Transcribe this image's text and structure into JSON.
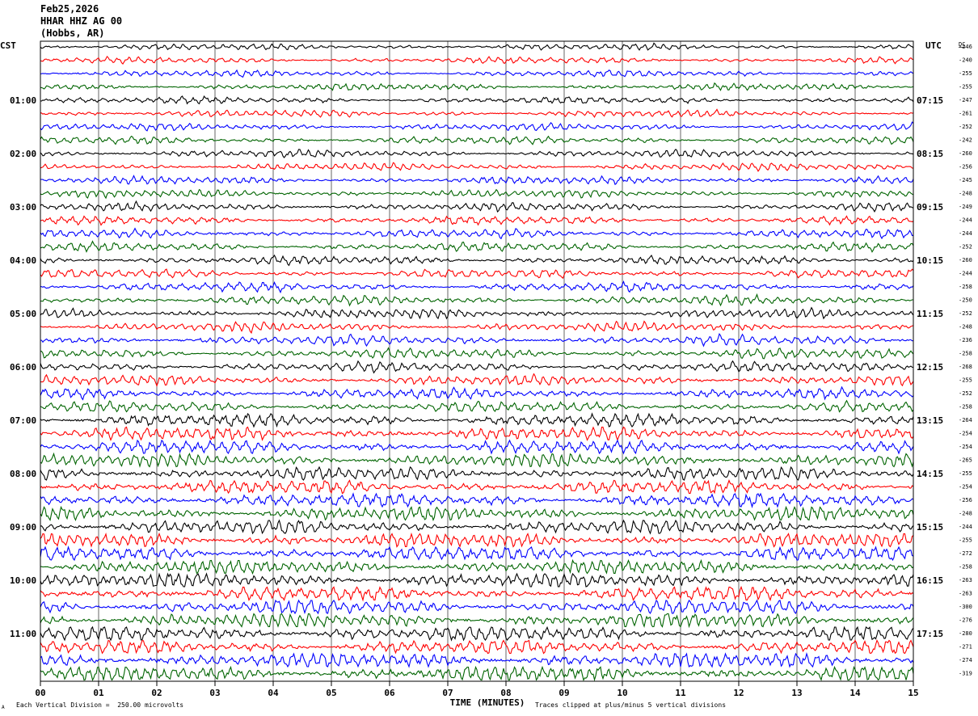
{
  "header": {
    "date": "Feb25,2026",
    "station": "HHAR HHZ AG 00",
    "location": "(Hobbs, AR)"
  },
  "footer": {
    "scale_note": "Each Vertical Division =  250.00 microvolts",
    "clip_note": "Traces clipped at plus/minus 5 vertical divisions",
    "corner_mark": "A"
  },
  "chart_data": {
    "type": "line",
    "title": "",
    "xlabel": "TIME (MINUTES)",
    "xlim": [
      0,
      15
    ],
    "x_ticks": [
      "00",
      "01",
      "02",
      "03",
      "04",
      "05",
      "06",
      "07",
      "08",
      "09",
      "10",
      "11",
      "12",
      "13",
      "14",
      "15"
    ],
    "left_axis_label": "CST",
    "right_axis_label": "UTC",
    "dc_label": "DC",
    "left_time_labels": [
      "01:00",
      "02:00",
      "03:00",
      "04:00",
      "05:00",
      "06:00",
      "07:00",
      "08:00",
      "09:00",
      "10:00",
      "11:00"
    ],
    "right_time_labels": [
      "07:15",
      "08:15",
      "09:15",
      "10:15",
      "11:15",
      "12:15",
      "13:15",
      "14:15",
      "15:15",
      "16:15",
      "17:15"
    ],
    "trace_colors": [
      "#000000",
      "#ff0000",
      "#0000ff",
      "#006400"
    ],
    "trace_count": 48,
    "dc_offsets": [
      -246,
      -240,
      -255,
      -255,
      -247,
      -261,
      -252,
      -242,
      -260,
      -256,
      -245,
      -248,
      -249,
      -244,
      -244,
      -252,
      -260,
      -244,
      -258,
      -250,
      -252,
      -248,
      -236,
      -258,
      -268,
      -255,
      -252,
      -258,
      -264,
      -254,
      -254,
      -265,
      -255,
      -254,
      -256,
      -248,
      -244,
      -255,
      -272,
      -258,
      -263,
      -263,
      -300,
      -276,
      -280,
      -271,
      -274,
      -319
    ],
    "vertical_division_microvolts": 250.0,
    "clip_divisions": 5
  }
}
